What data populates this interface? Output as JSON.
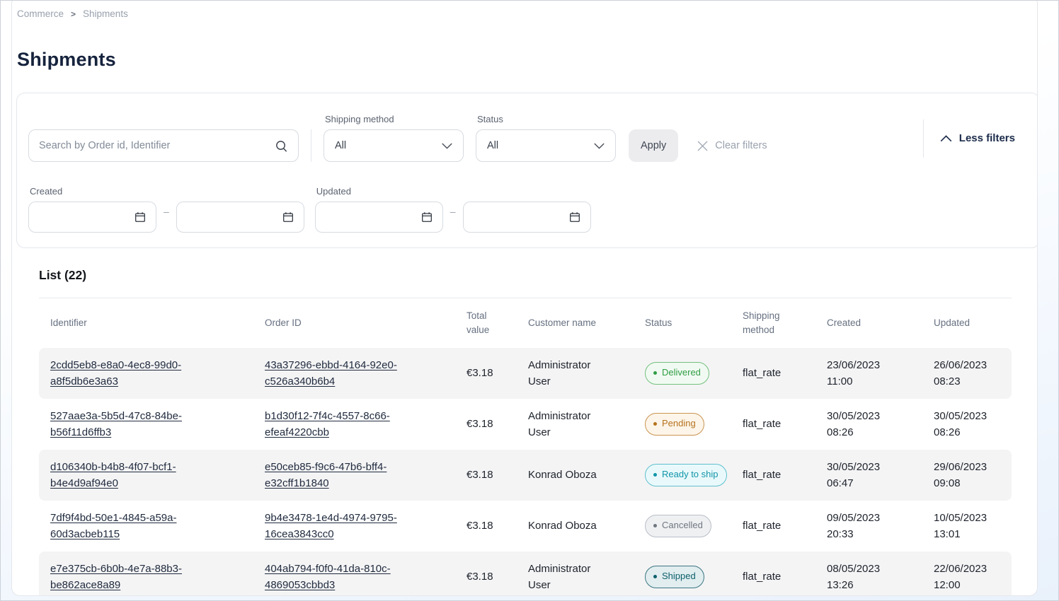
{
  "breadcrumb": {
    "items": [
      "Commerce",
      "Shipments"
    ],
    "separator": ">"
  },
  "page": {
    "title": "Shipments"
  },
  "filters": {
    "search": {
      "placeholder": "Search by Order id, Identifier",
      "value": ""
    },
    "shipping_method": {
      "label": "Shipping method",
      "value": "All"
    },
    "status": {
      "label": "Status",
      "value": "All"
    },
    "apply_label": "Apply",
    "clear_label": "Clear filters",
    "less_filters_label": "Less filters",
    "created": {
      "label": "Created",
      "from": "",
      "to": ""
    },
    "updated": {
      "label": "Updated",
      "from": "",
      "to": ""
    },
    "range_separator": "–"
  },
  "list": {
    "title": "List (22)",
    "columns": [
      "Identifier",
      "Order ID",
      "Total value",
      "Customer name",
      "Status",
      "Shipping method",
      "Created",
      "Updated"
    ],
    "status_styles": {
      "delivered": {
        "text": "#2f9e44",
        "border": "#74c07e",
        "bg": "#f1faf2"
      },
      "pending": {
        "text": "#b5721f",
        "border": "#c89350",
        "bg": "#fdf5e9"
      },
      "ready_to_ship": {
        "text": "#1195a9",
        "border": "#5fc0ce",
        "bg": "#e9f9fb"
      },
      "cancelled": {
        "text": "#6f7780",
        "border": "#b8bec6",
        "bg": "#eff0f2"
      },
      "shipped": {
        "text": "#0c5f6b",
        "border": "#3a7680",
        "bg": "#e1edef"
      }
    },
    "rows": [
      {
        "identifier": "2cdd5eb8-e8a0-4ec8-99d0-a8f5db6e3a63",
        "order_id": "43a37296-ebbd-4164-92e0-c526a340b6b4",
        "total_value": "€3.18",
        "customer_name": "Administrator User",
        "status": {
          "label": "Delivered",
          "key": "delivered"
        },
        "shipping_method": "flat_rate",
        "created": {
          "date": "23/06/2023",
          "time": "11:00"
        },
        "updated": {
          "date": "26/06/2023",
          "time": "08:23"
        }
      },
      {
        "identifier": "527aae3a-5b5d-47c8-84be-b56f11d6ffb3",
        "order_id": "b1d30f12-7f4c-4557-8c66-efeaf4220cbb",
        "total_value": "€3.18",
        "customer_name": "Administrator User",
        "status": {
          "label": "Pending",
          "key": "pending"
        },
        "shipping_method": "flat_rate",
        "created": {
          "date": "30/05/2023",
          "time": "08:26"
        },
        "updated": {
          "date": "30/05/2023",
          "time": "08:26"
        }
      },
      {
        "identifier": "d106340b-b4b8-4f07-bcf1-b4e4d9af94e0",
        "order_id": "e50ceb85-f9c6-47b6-bff4-e32cff1b1840",
        "total_value": "€3.18",
        "customer_name": "Konrad Oboza",
        "status": {
          "label": "Ready to ship",
          "key": "ready_to_ship"
        },
        "shipping_method": "flat_rate",
        "created": {
          "date": "30/05/2023",
          "time": "06:47"
        },
        "updated": {
          "date": "29/06/2023",
          "time": "09:08"
        }
      },
      {
        "identifier": "7df9f4bd-50e1-4845-a59a-60d3acbeb115",
        "order_id": "9b4e3478-1e4d-4974-9795-16cea3843cc0",
        "total_value": "€3.18",
        "customer_name": "Konrad Oboza",
        "status": {
          "label": "Cancelled",
          "key": "cancelled"
        },
        "shipping_method": "flat_rate",
        "created": {
          "date": "09/05/2023",
          "time": "20:33"
        },
        "updated": {
          "date": "10/05/2023",
          "time": "13:01"
        }
      },
      {
        "identifier": "e7e375cb-6b0b-4e7a-88b3-be862ace8a89",
        "order_id": "404ab794-f0f0-41da-810c-4869053cbbd3",
        "total_value": "€3.18",
        "customer_name": "Administrator User",
        "status": {
          "label": "Shipped",
          "key": "shipped"
        },
        "shipping_method": "flat_rate",
        "created": {
          "date": "08/05/2023",
          "time": "13:26"
        },
        "updated": {
          "date": "22/06/2023",
          "time": "12:00"
        }
      }
    ]
  }
}
